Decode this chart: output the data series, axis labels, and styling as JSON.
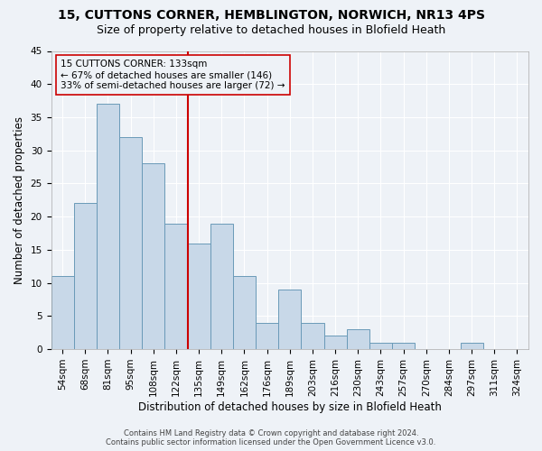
{
  "title_line1": "15, CUTTONS CORNER, HEMBLINGTON, NORWICH, NR13 4PS",
  "title_line2": "Size of property relative to detached houses in Blofield Heath",
  "xlabel": "Distribution of detached houses by size in Blofield Heath",
  "ylabel": "Number of detached properties",
  "footer_line1": "Contains HM Land Registry data © Crown copyright and database right 2024.",
  "footer_line2": "Contains public sector information licensed under the Open Government Licence v3.0.",
  "bar_labels": [
    "54sqm",
    "68sqm",
    "81sqm",
    "95sqm",
    "108sqm",
    "122sqm",
    "135sqm",
    "149sqm",
    "162sqm",
    "176sqm",
    "189sqm",
    "203sqm",
    "216sqm",
    "230sqm",
    "243sqm",
    "257sqm",
    "270sqm",
    "284sqm",
    "297sqm",
    "311sqm",
    "324sqm"
  ],
  "bar_values": [
    11,
    22,
    37,
    32,
    28,
    19,
    16,
    19,
    11,
    4,
    9,
    4,
    2,
    3,
    1,
    1,
    0,
    0,
    1,
    0,
    0
  ],
  "bar_color": "#c8d8e8",
  "bar_edge_color": "#6a9ab8",
  "vline_index": 6,
  "vline_color": "#cc0000",
  "annotation_title": "15 CUTTONS CORNER: 133sqm",
  "annotation_line2": "← 67% of detached houses are smaller (146)",
  "annotation_line3": "33% of semi-detached houses are larger (72) →",
  "annotation_box_color": "#cc0000",
  "ylim": [
    0,
    45
  ],
  "yticks": [
    0,
    5,
    10,
    15,
    20,
    25,
    30,
    35,
    40,
    45
  ],
  "background_color": "#eef2f7",
  "grid_color": "#ffffff",
  "title_fontsize": 10,
  "subtitle_fontsize": 9,
  "axis_label_fontsize": 8.5,
  "tick_fontsize": 7.5,
  "footer_fontsize": 6
}
